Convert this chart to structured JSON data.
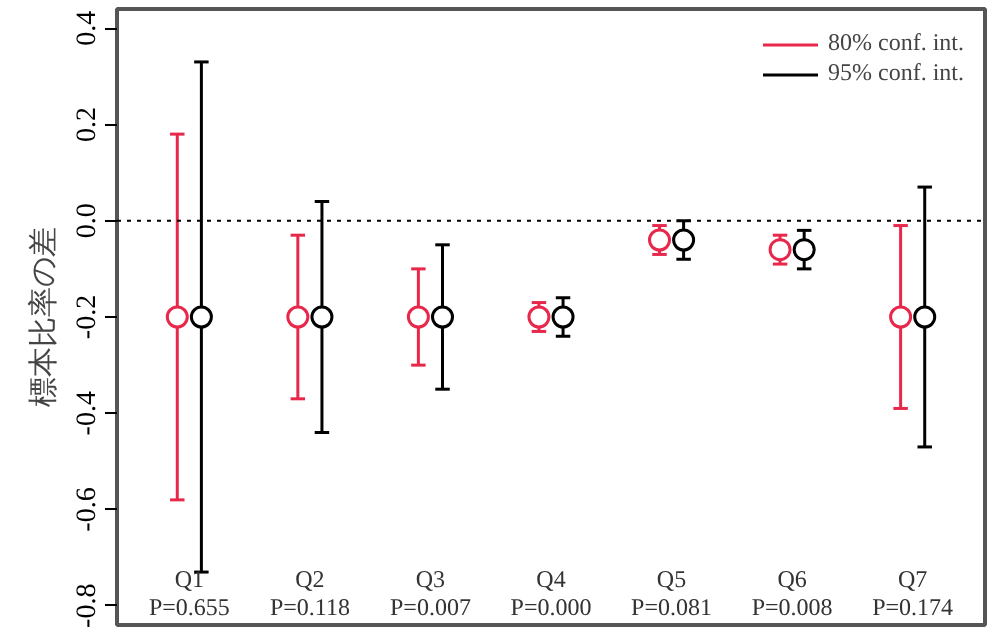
{
  "chart_data": {
    "type": "scatter",
    "ylabel": "標本比率の差",
    "categories": [
      "Q1\nP=0.655",
      "Q2\nP=0.118",
      "Q3\nP=0.007",
      "Q4\nP=0.000",
      "Q5\nP=0.081",
      "Q6\nP=0.008",
      "Q7\nP=0.174"
    ],
    "series": [
      {
        "name": "80% conf. int.",
        "color": "#e8284a",
        "values": [
          -0.2,
          -0.2,
          -0.2,
          -0.2,
          -0.04,
          -0.06,
          -0.2
        ],
        "errors": [
          [
            -0.58,
            0.18
          ],
          [
            -0.37,
            -0.03
          ],
          [
            -0.3,
            -0.1
          ],
          [
            -0.23,
            -0.17
          ],
          [
            -0.07,
            -0.01
          ],
          [
            -0.09,
            -0.03
          ],
          [
            -0.39,
            -0.01
          ]
        ]
      },
      {
        "name": "95% conf. int.",
        "color": "#000000",
        "values": [
          -0.2,
          -0.2,
          -0.2,
          -0.2,
          -0.04,
          -0.06,
          -0.2
        ],
        "errors": [
          [
            -0.73,
            0.33
          ],
          [
            -0.44,
            0.04
          ],
          [
            -0.35,
            -0.05
          ],
          [
            -0.24,
            -0.16
          ],
          [
            -0.08,
            0.0
          ],
          [
            -0.1,
            -0.02
          ],
          [
            -0.47,
            0.07
          ]
        ]
      }
    ],
    "ylim": [
      -0.84,
      0.44
    ],
    "yticks": [
      -0.8,
      -0.6,
      -0.4,
      -0.2,
      {
        "value": 0,
        "label": "0.0"
      },
      0.2,
      0.4
    ],
    "ref_lines": [
      {
        "axis": "y",
        "value": 0,
        "line_style": "dotted",
        "color": "#000000"
      }
    ],
    "marker": "circle",
    "grid": false,
    "legend": "top right"
  }
}
